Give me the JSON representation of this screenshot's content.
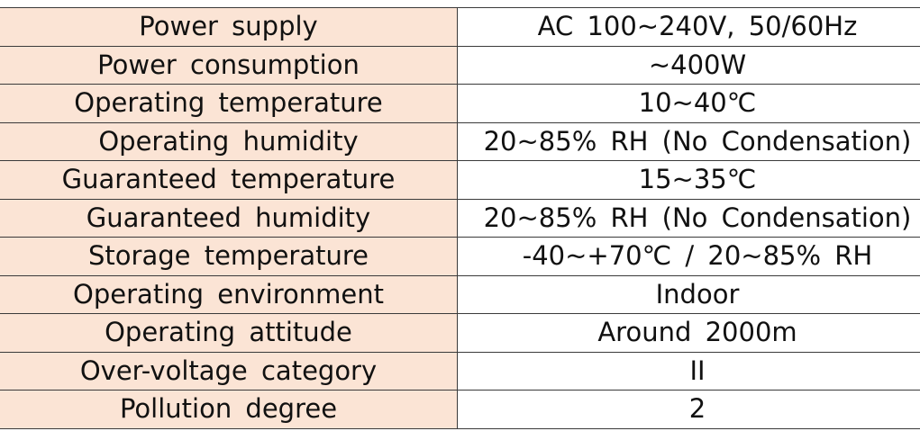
{
  "spec_table": {
    "rows": [
      {
        "label": "Power supply",
        "value": "AC 100~240V, 50/60Hz"
      },
      {
        "label": "Power consumption",
        "value": "~400W"
      },
      {
        "label": "Operating temperature",
        "value": "10~40℃"
      },
      {
        "label": "Operating humidity",
        "value": "20~85% RH (No Condensation)"
      },
      {
        "label": "Guaranteed temperature",
        "value": "15~35℃"
      },
      {
        "label": "Guaranteed humidity",
        "value": "20~85% RH (No Condensation)"
      },
      {
        "label": "Storage temperature",
        "value": "-40~+70℃ / 20~85% RH"
      },
      {
        "label": "Operating environment",
        "value": "Indoor"
      },
      {
        "label": "Operating attitude",
        "value": "Around 2000m"
      },
      {
        "label": "Over-voltage category",
        "value": "II"
      },
      {
        "label": "Pollution degree",
        "value": "2"
      }
    ]
  }
}
